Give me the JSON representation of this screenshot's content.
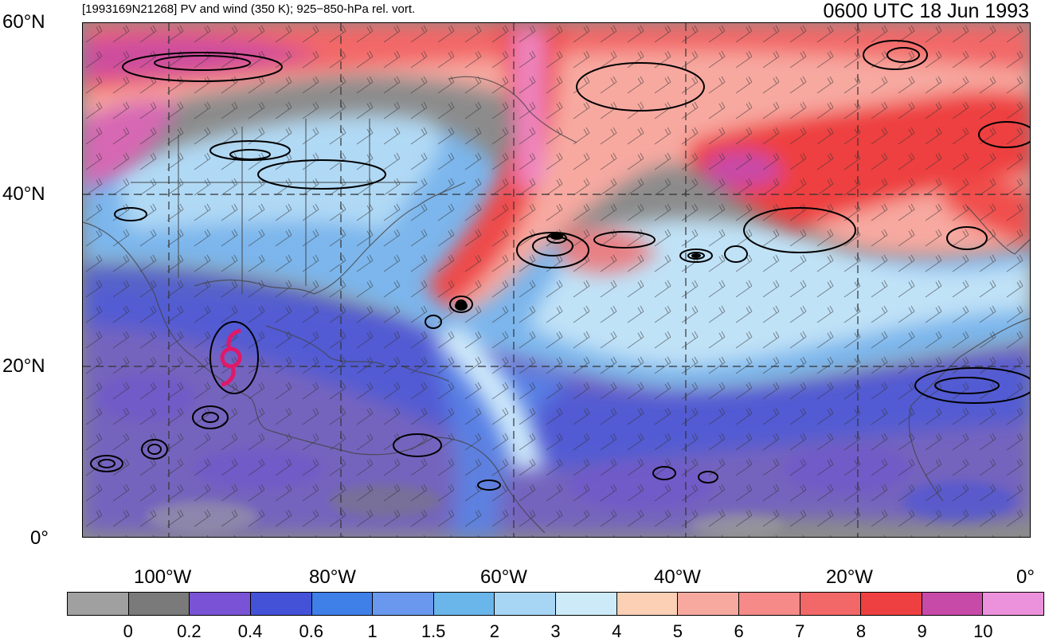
{
  "header": {
    "title_left": "[1993169N21268] PV and wind (350 K); 925−850-hPa rel. vort.",
    "title_right": "0600 UTC 18 Jun 1993"
  },
  "axes": {
    "lat_labels": [
      "60°N",
      "40°N",
      "20°N",
      "0°"
    ],
    "lon_labels": [
      "100°W",
      "80°W",
      "60°W",
      "40°W",
      "20°W",
      "0°"
    ]
  },
  "colorbar": {
    "colors": [
      "#a0a0a0",
      "#7a7a7a",
      "#7a52d6",
      "#4452d8",
      "#3f7fe8",
      "#6a98ee",
      "#6ab6ea",
      "#a6d6f4",
      "#cdeaf8",
      "#fbd0b4",
      "#f7a9a0",
      "#f58a88",
      "#f26868",
      "#ee4040",
      "#c84aa8",
      "#ec92dc"
    ],
    "labels": [
      "0",
      "0.2",
      "0.4",
      "0.6",
      "1",
      "1.5",
      "2",
      "3",
      "4",
      "5",
      "6",
      "7",
      "8",
      "9",
      "10"
    ]
  },
  "storm": {
    "icon": "tropical-cyclone-icon",
    "color": "#e0186a"
  }
}
